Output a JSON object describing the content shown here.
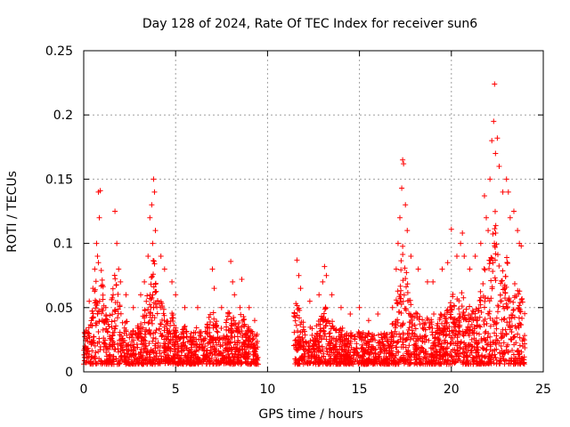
{
  "chart_data": {
    "type": "scatter",
    "title": "Day 128 of 2024, Rate Of TEC Index for receiver sun6",
    "xlabel": "GPS time / hours",
    "ylabel": "ROTI / TECUs",
    "xlim": [
      0,
      25
    ],
    "ylim": [
      0,
      0.25
    ],
    "xticks": [
      {
        "value": 0,
        "label": "0"
      },
      {
        "value": 5,
        "label": "5"
      },
      {
        "value": 10,
        "label": "10"
      },
      {
        "value": 15,
        "label": "15"
      },
      {
        "value": 20,
        "label": "20"
      },
      {
        "value": 25,
        "label": "25"
      }
    ],
    "yticks": [
      {
        "value": 0,
        "label": "0"
      },
      {
        "value": 0.05,
        "label": "0.05"
      },
      {
        "value": 0.1,
        "label": "0.1"
      },
      {
        "value": 0.15,
        "label": "0.15"
      },
      {
        "value": 0.2,
        "label": "0.2"
      },
      {
        "value": 0.25,
        "label": "0.25"
      }
    ],
    "grid": true,
    "marker": "plus",
    "marker_color": "#ff0000",
    "gap_hours": [
      9.5,
      11.4
    ],
    "points": [
      [
        0.3,
        0.055
      ],
      [
        0.5,
        0.065
      ],
      [
        0.6,
        0.08
      ],
      [
        0.7,
        0.1
      ],
      [
        0.8,
        0.14
      ],
      [
        0.9,
        0.141
      ],
      [
        0.85,
        0.12
      ],
      [
        0.75,
        0.09
      ],
      [
        1.2,
        0.05
      ],
      [
        1.6,
        0.06
      ],
      [
        1.7,
        0.125
      ],
      [
        1.8,
        0.1
      ],
      [
        1.9,
        0.08
      ],
      [
        2.0,
        0.07
      ],
      [
        2.3,
        0.06
      ],
      [
        2.7,
        0.05
      ],
      [
        3.1,
        0.06
      ],
      [
        3.3,
        0.07
      ],
      [
        3.5,
        0.09
      ],
      [
        3.6,
        0.12
      ],
      [
        3.7,
        0.13
      ],
      [
        3.8,
        0.15
      ],
      [
        3.85,
        0.14
      ],
      [
        3.9,
        0.11
      ],
      [
        3.75,
        0.1
      ],
      [
        4.2,
        0.09
      ],
      [
        4.4,
        0.08
      ],
      [
        4.8,
        0.07
      ],
      [
        5.0,
        0.06
      ],
      [
        5.5,
        0.05
      ],
      [
        6.2,
        0.05
      ],
      [
        7.0,
        0.08
      ],
      [
        7.1,
        0.065
      ],
      [
        7.5,
        0.05
      ],
      [
        8.0,
        0.086
      ],
      [
        8.1,
        0.07
      ],
      [
        8.2,
        0.06
      ],
      [
        8.5,
        0.05
      ],
      [
        8.6,
        0.072
      ],
      [
        9.0,
        0.05
      ],
      [
        9.3,
        0.04
      ],
      [
        11.6,
        0.087
      ],
      [
        11.7,
        0.075
      ],
      [
        11.8,
        0.065
      ],
      [
        12.3,
        0.055
      ],
      [
        12.8,
        0.06
      ],
      [
        13.0,
        0.07
      ],
      [
        13.1,
        0.082
      ],
      [
        13.2,
        0.075
      ],
      [
        13.5,
        0.06
      ],
      [
        14.0,
        0.05
      ],
      [
        14.5,
        0.045
      ],
      [
        15.0,
        0.05
      ],
      [
        15.5,
        0.04
      ],
      [
        16.0,
        0.045
      ],
      [
        16.8,
        0.05
      ],
      [
        17.0,
        0.08
      ],
      [
        17.1,
        0.1
      ],
      [
        17.2,
        0.12
      ],
      [
        17.3,
        0.143
      ],
      [
        17.35,
        0.165
      ],
      [
        17.4,
        0.162
      ],
      [
        17.5,
        0.13
      ],
      [
        17.6,
        0.11
      ],
      [
        17.8,
        0.09
      ],
      [
        18.2,
        0.08
      ],
      [
        18.7,
        0.07
      ],
      [
        19.0,
        0.07
      ],
      [
        19.5,
        0.08
      ],
      [
        19.8,
        0.085
      ],
      [
        20.0,
        0.111
      ],
      [
        20.3,
        0.09
      ],
      [
        20.5,
        0.1
      ],
      [
        20.6,
        0.108
      ],
      [
        20.7,
        0.09
      ],
      [
        21.0,
        0.08
      ],
      [
        21.3,
        0.09
      ],
      [
        21.6,
        0.1
      ],
      [
        21.8,
        0.137
      ],
      [
        21.9,
        0.12
      ],
      [
        22.0,
        0.11
      ],
      [
        22.1,
        0.15
      ],
      [
        22.2,
        0.18
      ],
      [
        22.3,
        0.195
      ],
      [
        22.35,
        0.224
      ],
      [
        22.4,
        0.17
      ],
      [
        22.5,
        0.182
      ],
      [
        22.6,
        0.16
      ],
      [
        22.8,
        0.14
      ],
      [
        23.0,
        0.15
      ],
      [
        23.1,
        0.14
      ],
      [
        23.2,
        0.12
      ],
      [
        23.4,
        0.125
      ],
      [
        23.6,
        0.11
      ],
      [
        23.7,
        0.1
      ],
      [
        23.8,
        0.098
      ]
    ]
  }
}
